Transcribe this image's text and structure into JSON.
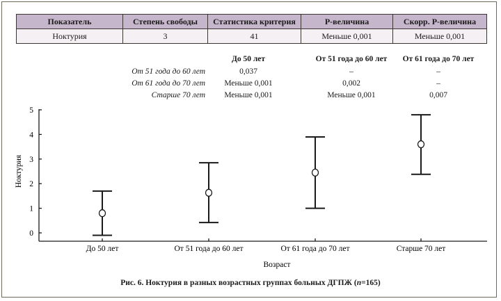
{
  "summary_table": {
    "headers": [
      "Показатель",
      "Степень свободы",
      "Статистика критерия",
      "P-величина",
      "Скорр. P-величина"
    ],
    "row": [
      "Ноктурия",
      "3",
      "41",
      "Меньше 0,001",
      "Меньше 0,001"
    ]
  },
  "pairwise": {
    "columns": [
      "До 50 лет",
      "От 51 года до 60 лет",
      "От 61 года до 70 лет"
    ],
    "rows": [
      {
        "label": "От 51 года до 60 лет",
        "values": [
          "0,037",
          "–",
          "–"
        ]
      },
      {
        "label": "От 61 года до 70 лет",
        "values": [
          "Меньше 0,001",
          "0,002",
          "–"
        ]
      },
      {
        "label": "Старше 70 лет",
        "values": [
          "Меньше 0,001",
          "Меньше 0,001",
          "0,007"
        ]
      }
    ]
  },
  "chart_data": {
    "type": "errorbar",
    "categories": [
      "До 50 лет",
      "От 51 года до 60 лет",
      "От 61 года до 70 лет",
      "Старше 70 лет"
    ],
    "mean": [
      0.8,
      1.63,
      2.45,
      3.6
    ],
    "lower": [
      -0.1,
      0.42,
      1.0,
      2.38
    ],
    "upper": [
      1.7,
      2.85,
      3.9,
      4.8
    ],
    "xlabel": "Возраст",
    "ylabel": "Ноктурия",
    "ylim": [
      0,
      5
    ],
    "yticks": [
      "0",
      "1",
      "2",
      "3",
      "4",
      "5"
    ],
    "grid": false
  },
  "caption": {
    "prefix": "Рис. 6. Ноктурия в разных возрастных группах больных ДГПЖ (",
    "n": "n",
    "suffix": "=165)"
  }
}
